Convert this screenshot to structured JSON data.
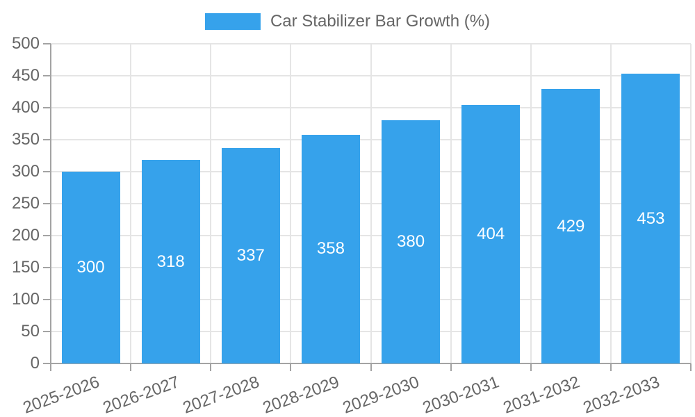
{
  "legend": {
    "label": "Car Stabilizer Bar Growth (%)",
    "swatch_color": "#36A2EB"
  },
  "chart_data": {
    "type": "bar",
    "title": "Car Stabilizer Bar Growth (%)",
    "series_name": "Car Stabilizer Bar Growth (%)",
    "categories": [
      "2025-2026",
      "2026-2027",
      "2027-2028",
      "2028-2029",
      "2029-2030",
      "2030-2031",
      "2031-2032",
      "2032-2033"
    ],
    "values": [
      300,
      318,
      337,
      358,
      380,
      404,
      429,
      453
    ],
    "xlabel": "",
    "ylabel": "",
    "ylim": [
      0,
      500
    ],
    "ytick_step": 50,
    "yticks": [
      0,
      50,
      100,
      150,
      200,
      250,
      300,
      350,
      400,
      450,
      500
    ],
    "grid": true,
    "legend_position": "top-center",
    "bar_color": "#36A2EB",
    "value_label_color": "#ffffff",
    "axis_text_color": "#666666",
    "grid_color": "#e5e5e5",
    "axis_line_color": "#a3a3a3",
    "background_color": "#ffffff"
  }
}
